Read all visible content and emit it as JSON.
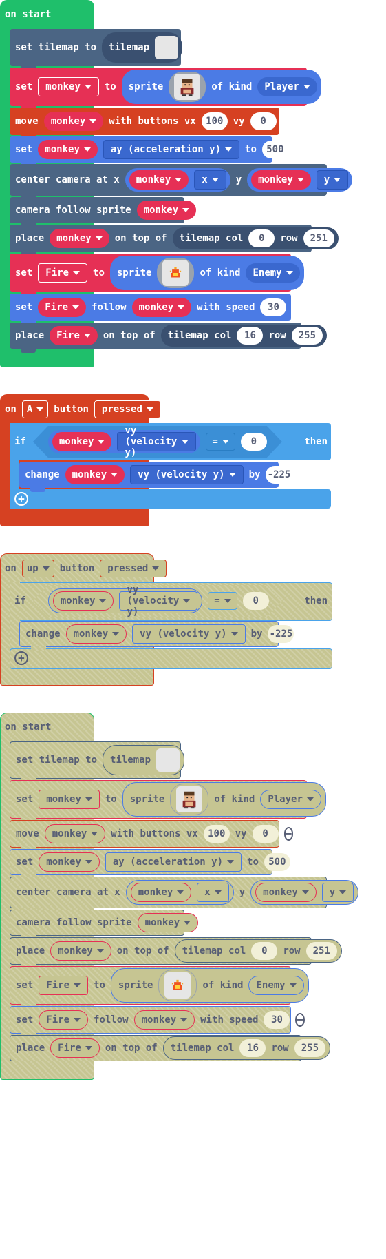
{
  "kw": {
    "on_start": "on start",
    "set_tilemap_to": "set tilemap to",
    "tilemap": "tilemap",
    "set": "set",
    "to": "to",
    "sprite": "sprite",
    "of_kind": "of kind",
    "move": "move",
    "with_buttons_vx": "with buttons vx",
    "vy": "vy",
    "center_camera_at_x": "center camera at x",
    "y": "y",
    "camera_follow_sprite": "camera follow sprite",
    "place": "place",
    "on_top_of": "on top of",
    "tilemap_col": "tilemap col",
    "row": "row",
    "follow": "follow",
    "with_speed": "with speed",
    "on": "on",
    "button": "button",
    "if": "if",
    "then": "then",
    "change": "change",
    "by": "by"
  },
  "values": {
    "monkey": "monkey",
    "fire": "Fire",
    "player": "Player",
    "enemy": "Enemy",
    "vx": "100",
    "vy": "0",
    "ay_prop": "ay (acceleration y)",
    "ay_val": "500",
    "x_prop": "x",
    "y_prop": "y",
    "col1": "0",
    "row1": "251",
    "speed": "30",
    "col2": "16",
    "row2": "255",
    "btn_a": "A",
    "btn_up": "up",
    "pressed": "pressed",
    "vy_prop": "vy (velocity y)",
    "eq": "=",
    "zero": "0",
    "delta": "-225"
  },
  "icons": {
    "remove": "minus-circle",
    "add": "plus-circle",
    "monkey_image": "monkey-sprite-image",
    "fire_image": "fire-sprite-image"
  }
}
